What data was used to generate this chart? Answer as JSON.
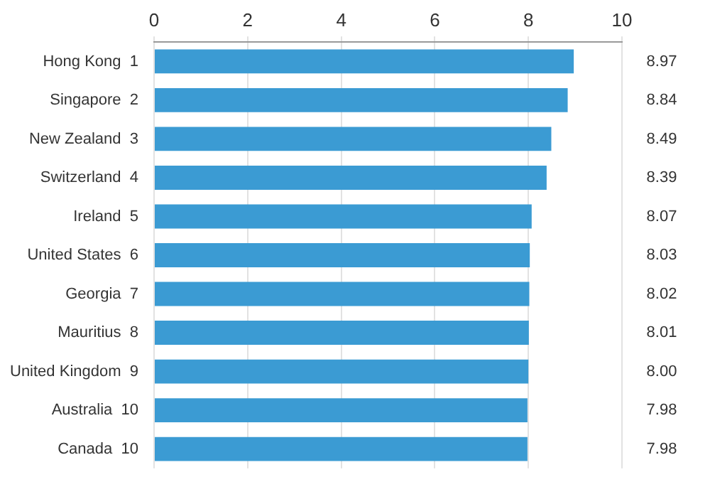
{
  "chart_data": {
    "type": "bar",
    "orientation": "horizontal",
    "categories": [
      "Hong Kong  1",
      "Singapore  2",
      "New Zealand  3",
      "Switzerland  4",
      "Ireland  5",
      "United States  6",
      "Georgia  7",
      "Mauritius  8",
      "United Kingdom  9",
      "Australia  10",
      "Canada  10"
    ],
    "values": [
      8.97,
      8.84,
      8.49,
      8.39,
      8.07,
      8.03,
      8.02,
      8.01,
      8.0,
      7.98,
      7.98
    ],
    "value_labels": [
      "8.97",
      "8.84",
      "8.49",
      "8.39",
      "8.07",
      "8.03",
      "8.02",
      "8.01",
      "8.00",
      "7.98",
      "7.98"
    ],
    "color": "#3b9bd3",
    "xlim": [
      0,
      10
    ],
    "xticks": [
      0,
      2,
      4,
      6,
      8,
      10
    ],
    "grid": "x",
    "legend": false
  }
}
